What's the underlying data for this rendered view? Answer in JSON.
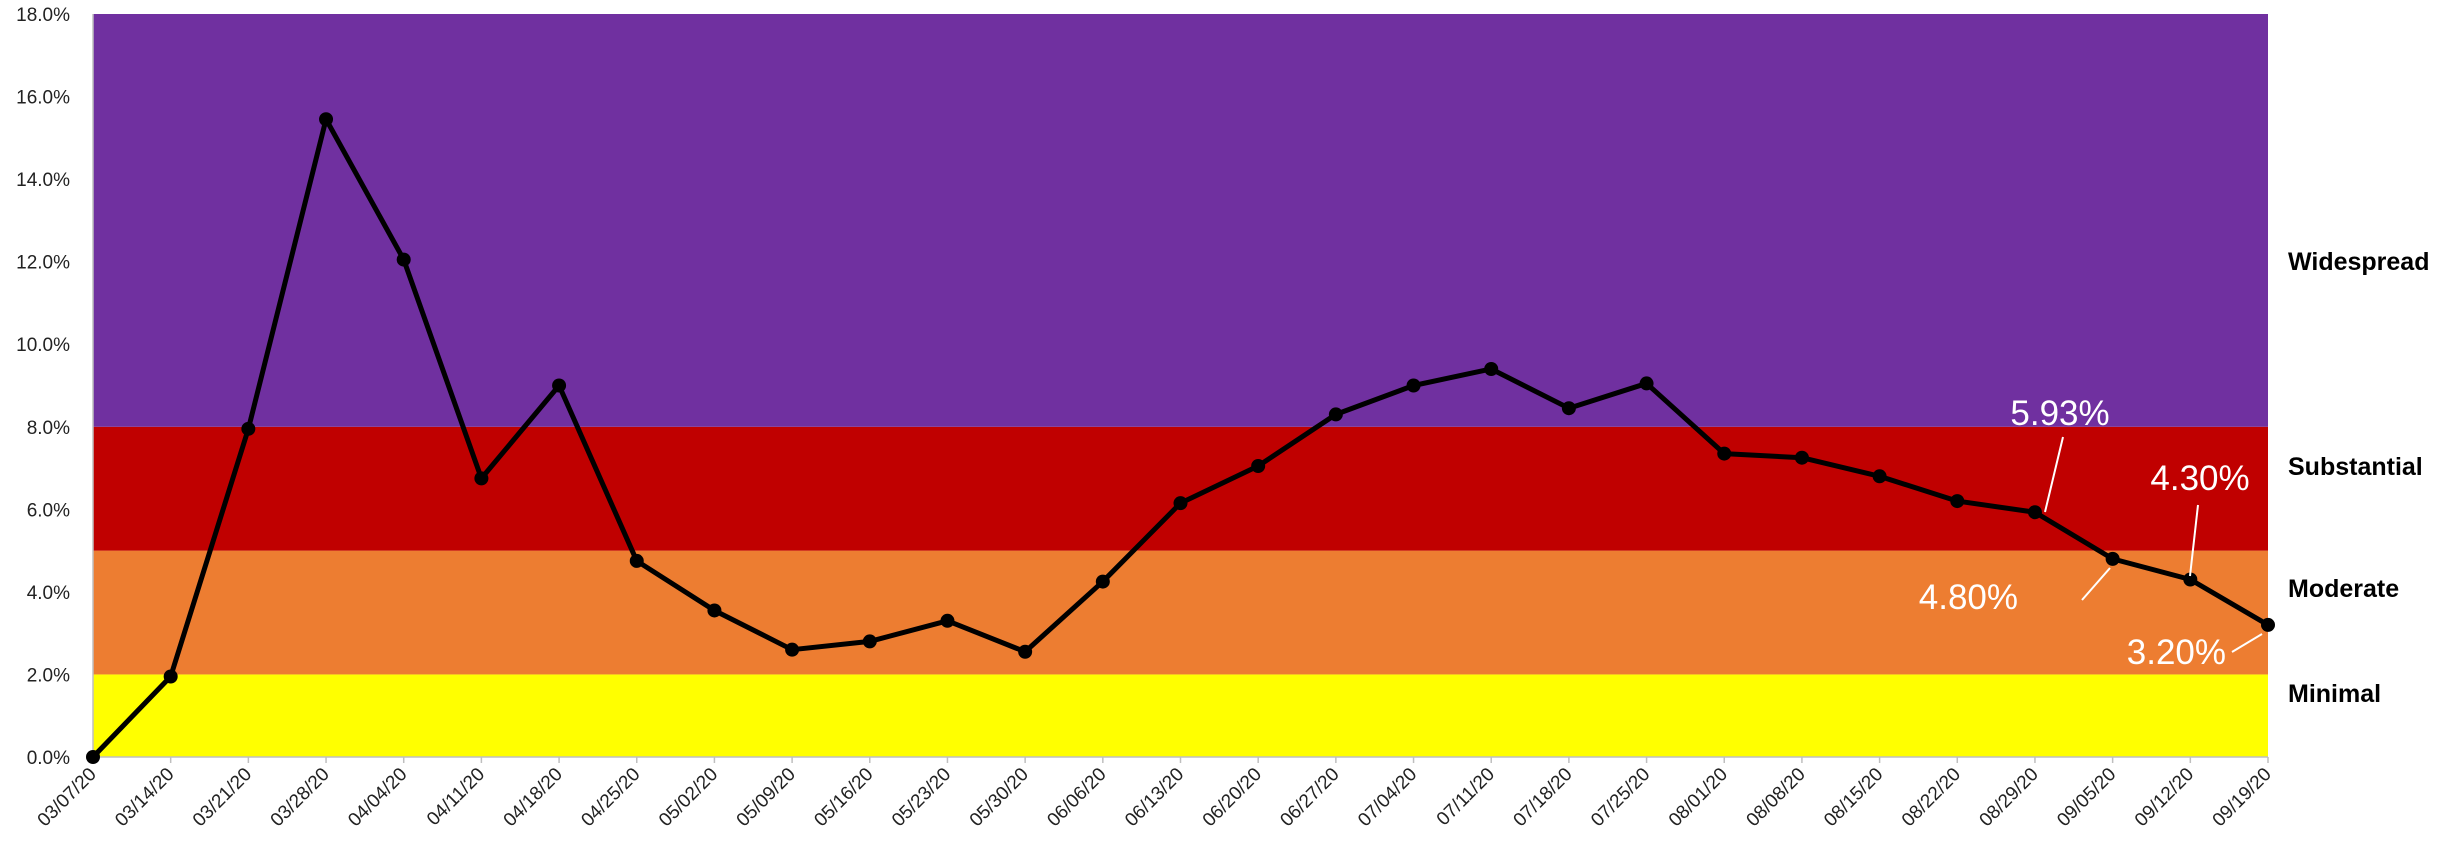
{
  "chart_data": {
    "type": "line",
    "title": "",
    "xlabel": "",
    "ylabel": "",
    "ylim": [
      0,
      18
    ],
    "y_ticks": [
      0,
      2,
      4,
      6,
      8,
      10,
      12,
      14,
      16,
      18
    ],
    "y_tick_labels": [
      "0.0%",
      "2.0%",
      "4.0%",
      "6.0%",
      "8.0%",
      "10.0%",
      "12.0%",
      "14.0%",
      "16.0%",
      "18.0%"
    ],
    "grid": false,
    "legend": "none",
    "categories": [
      "03/07/20",
      "03/14/20",
      "03/21/20",
      "03/28/20",
      "04/04/20",
      "04/11/20",
      "04/18/20",
      "04/25/20",
      "05/02/20",
      "05/09/20",
      "05/16/20",
      "05/23/20",
      "05/30/20",
      "06/06/20",
      "06/13/20",
      "06/20/20",
      "06/27/20",
      "07/04/20",
      "07/11/20",
      "07/18/20",
      "07/25/20",
      "08/01/20",
      "08/08/20",
      "08/15/20",
      "08/22/20",
      "08/29/20",
      "09/05/20",
      "09/12/20",
      "09/19/20"
    ],
    "series": [
      {
        "values": [
          0.0,
          1.95,
          7.95,
          15.45,
          12.05,
          6.75,
          9.0,
          4.75,
          3.55,
          2.6,
          2.8,
          3.3,
          2.55,
          4.25,
          6.15,
          7.05,
          8.3,
          9.0,
          9.4,
          8.45,
          9.05,
          7.35,
          7.25,
          6.8,
          6.2,
          5.93,
          4.8,
          4.3,
          3.2
        ],
        "color": "#000000"
      }
    ],
    "zones": [
      {
        "label": "Minimal",
        "from": 0,
        "to": 2,
        "color": "#ffff00"
      },
      {
        "label": "Moderate",
        "from": 2,
        "to": 5,
        "color": "#ed7d31"
      },
      {
        "label": "Substantial",
        "from": 5,
        "to": 8,
        "color": "#c00000"
      },
      {
        "label": "Widespread",
        "from": 8,
        "to": 18,
        "color": "#7030a0"
      }
    ],
    "annotations": [
      {
        "index": 25,
        "text": "5.93%"
      },
      {
        "index": 26,
        "text": "4.80%"
      },
      {
        "index": 27,
        "text": "4.30%"
      },
      {
        "index": 28,
        "text": "3.20%"
      }
    ]
  }
}
